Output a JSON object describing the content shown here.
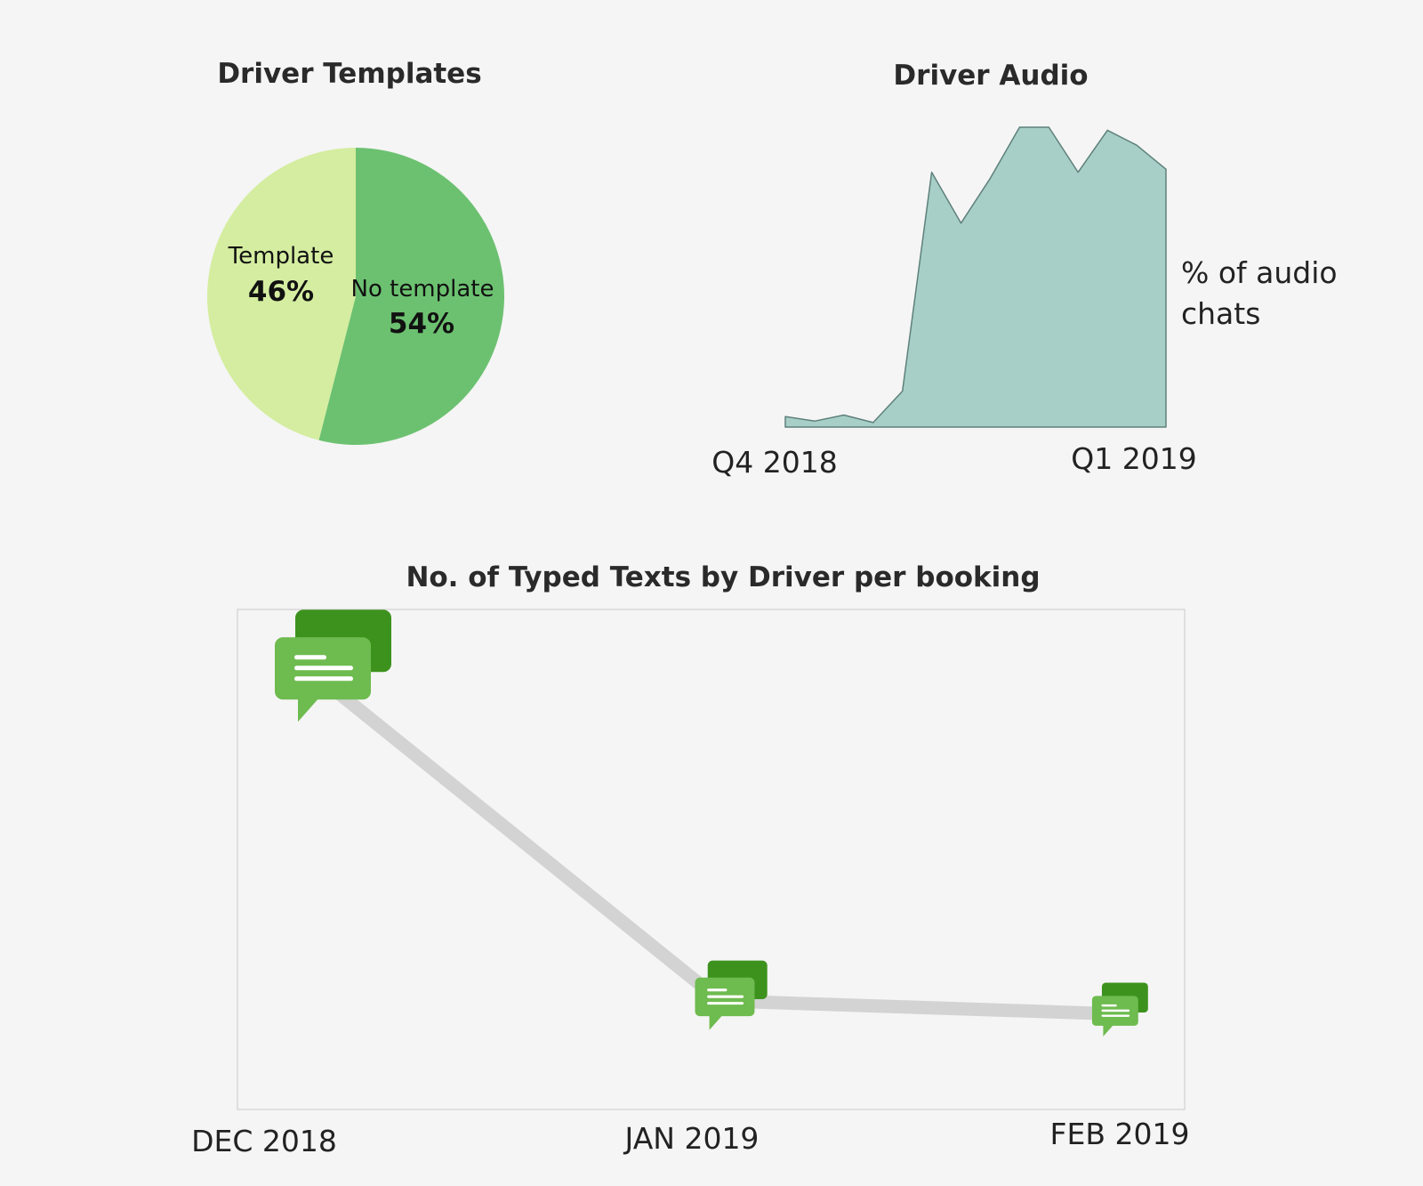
{
  "colors": {
    "background": "#f5f5f5",
    "pie_template": "#d4eda0",
    "pie_no_template": "#6cc170",
    "area_fill": "#a7cfc8",
    "area_stroke": "#5e807a",
    "line": "#d3d3d3",
    "bubble_back": "#3d921e",
    "bubble_front": "#6ebb4f"
  },
  "chart_data": [
    {
      "type": "pie",
      "title": "Driver Templates",
      "slices": [
        {
          "label": "Template",
          "display": "46%",
          "value": 46,
          "color": "#d4eda0"
        },
        {
          "label": "No template",
          "display": "54%",
          "value": 54,
          "color": "#6cc170"
        }
      ]
    },
    {
      "type": "area",
      "title": "Driver Audio",
      "xlabels": [
        "Q4 2018",
        "Q1 2019"
      ],
      "ylabel_lines": [
        "% of audio",
        "chats"
      ],
      "values": [
        3.5,
        2,
        4,
        1.5,
        12,
        85,
        68,
        83,
        100,
        100,
        85,
        99,
        94,
        86
      ],
      "ylim": [
        0,
        100
      ]
    },
    {
      "type": "line",
      "title": "No. of Typed Texts by Driver per booking",
      "categories": [
        "DEC 2018",
        "JAN 2019",
        "FEB 2019"
      ],
      "values": [
        1.0,
        0.25,
        0.22
      ],
      "marker_icon": "chat-bubbles-icon",
      "ylim": [
        0,
        1.15
      ]
    }
  ]
}
